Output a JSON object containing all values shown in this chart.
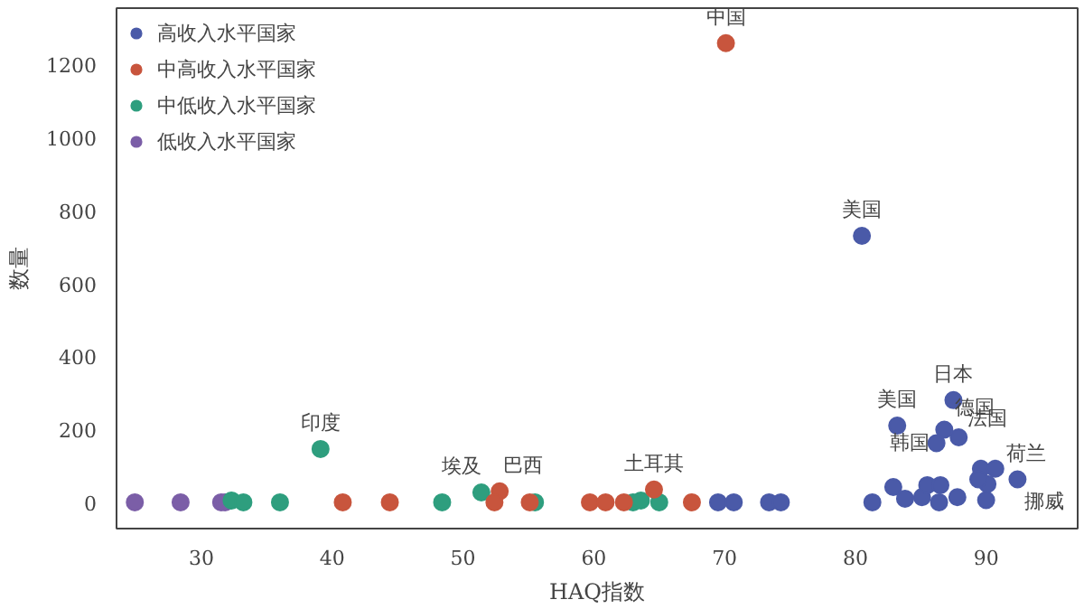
{
  "chart_data": {
    "type": "scatter",
    "xlabel": "HAQ指数",
    "ylabel": "数量",
    "xlim": [
      23.5,
      97
    ],
    "ylim": [
      -72,
      1354
    ],
    "xticks": [
      30,
      40,
      50,
      60,
      70,
      80,
      90
    ],
    "yticks": [
      0,
      200,
      400,
      600,
      800,
      1000,
      1200
    ],
    "grid": false,
    "legend": "top left",
    "marker": "circle",
    "series": [
      {
        "name": "高收入水平国家",
        "color": "#4a5aa8",
        "x": [
          69.5,
          70.7,
          73.4,
          74.3,
          81.3,
          80.5,
          87.5,
          83.2,
          86.2,
          87.9,
          86.8,
          89.6,
          90.7,
          92.4,
          82.9,
          83.8,
          85.1,
          85.5,
          86.5,
          86.4,
          87.8,
          90.0,
          90.1,
          89.4
        ],
        "values": [
          0,
          0,
          0,
          0,
          0,
          730,
          280,
          210,
          162,
          178,
          199,
          92,
          92,
          63,
          42,
          10,
          14,
          47,
          47,
          0,
          14,
          6,
          50,
          63
        ]
      },
      {
        "name": "中高收入水平国家",
        "color": "#c8553d",
        "x": [
          40.8,
          44.4,
          52.8,
          52.4,
          55.1,
          59.7,
          60.9,
          62.3,
          64.6,
          67.5,
          70.1
        ],
        "values": [
          0,
          0,
          30,
          0,
          0,
          0,
          0,
          0,
          35,
          0,
          1258
        ]
      },
      {
        "name": "中低收入水平国家",
        "color": "#2e9e7e",
        "x": [
          32.3,
          33.2,
          36.0,
          39.1,
          48.4,
          51.4,
          55.5,
          63.0,
          63.6,
          65.0
        ],
        "values": [
          5,
          0,
          0,
          146,
          0,
          27,
          0,
          0,
          5,
          0
        ]
      },
      {
        "name": "低收入水平国家",
        "color": "#7b5ea7",
        "x": [
          24.9,
          28.4,
          31.5,
          31.8
        ],
        "values": [
          0,
          0,
          0,
          0
        ]
      }
    ],
    "annotations": [
      {
        "text": "中国",
        "x": 70.1,
        "y": 1258
      },
      {
        "text": "美国",
        "x": 80.5,
        "y": 730
      },
      {
        "text": "日本",
        "x": 87.5,
        "y": 280
      },
      {
        "text": "德国",
        "x": 86.8,
        "y": 199
      },
      {
        "text": "美国",
        "x": 83.2,
        "y": 210
      },
      {
        "text": "韩国",
        "x": 86.2,
        "y": 162
      },
      {
        "text": "法国",
        "x": 87.9,
        "y": 178
      },
      {
        "text": "荷兰",
        "x": 90.7,
        "y": 92
      },
      {
        "text": "挪威",
        "x": 92.4,
        "y": 63
      },
      {
        "text": "印度",
        "x": 39.1,
        "y": 146
      },
      {
        "text": "埃及",
        "x": 51.4,
        "y": 27
      },
      {
        "text": "巴西",
        "x": 52.8,
        "y": 30
      },
      {
        "text": "土耳其",
        "x": 64.6,
        "y": 35
      }
    ]
  }
}
